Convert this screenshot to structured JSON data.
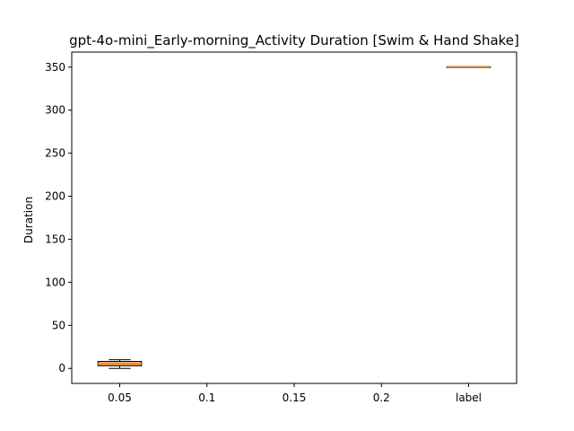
{
  "chart_data": {
    "type": "box",
    "title": "gpt-4o-mini_Early-morning_Activity Duration [Swim & Hand Shake]",
    "xlabel": "",
    "ylabel": "Duration",
    "categories": [
      "0.05",
      "0.1",
      "0.15",
      "0.2",
      "label"
    ],
    "ylim": [
      -17.5,
      367.5
    ],
    "yticks": [
      0,
      50,
      100,
      150,
      200,
      250,
      300,
      350
    ],
    "grid": false,
    "boxes": [
      {
        "category": "0.05",
        "whislo": 0,
        "q1": 3,
        "median": 5,
        "q3": 8,
        "whishi": 10
      },
      {
        "category": "0.1",
        "whislo": null,
        "q1": null,
        "median": null,
        "q3": null,
        "whishi": null
      },
      {
        "category": "0.15",
        "whislo": null,
        "q1": null,
        "median": null,
        "q3": null,
        "whishi": null
      },
      {
        "category": "0.2",
        "whislo": null,
        "q1": null,
        "median": null,
        "q3": null,
        "whishi": null
      },
      {
        "category": "label",
        "whislo": 350,
        "q1": 350,
        "median": 350,
        "q3": 350,
        "whishi": 350
      }
    ],
    "colors": {
      "box_edge": "#000000",
      "box_fill": "#f5b07a",
      "median": "#e8821e"
    }
  }
}
